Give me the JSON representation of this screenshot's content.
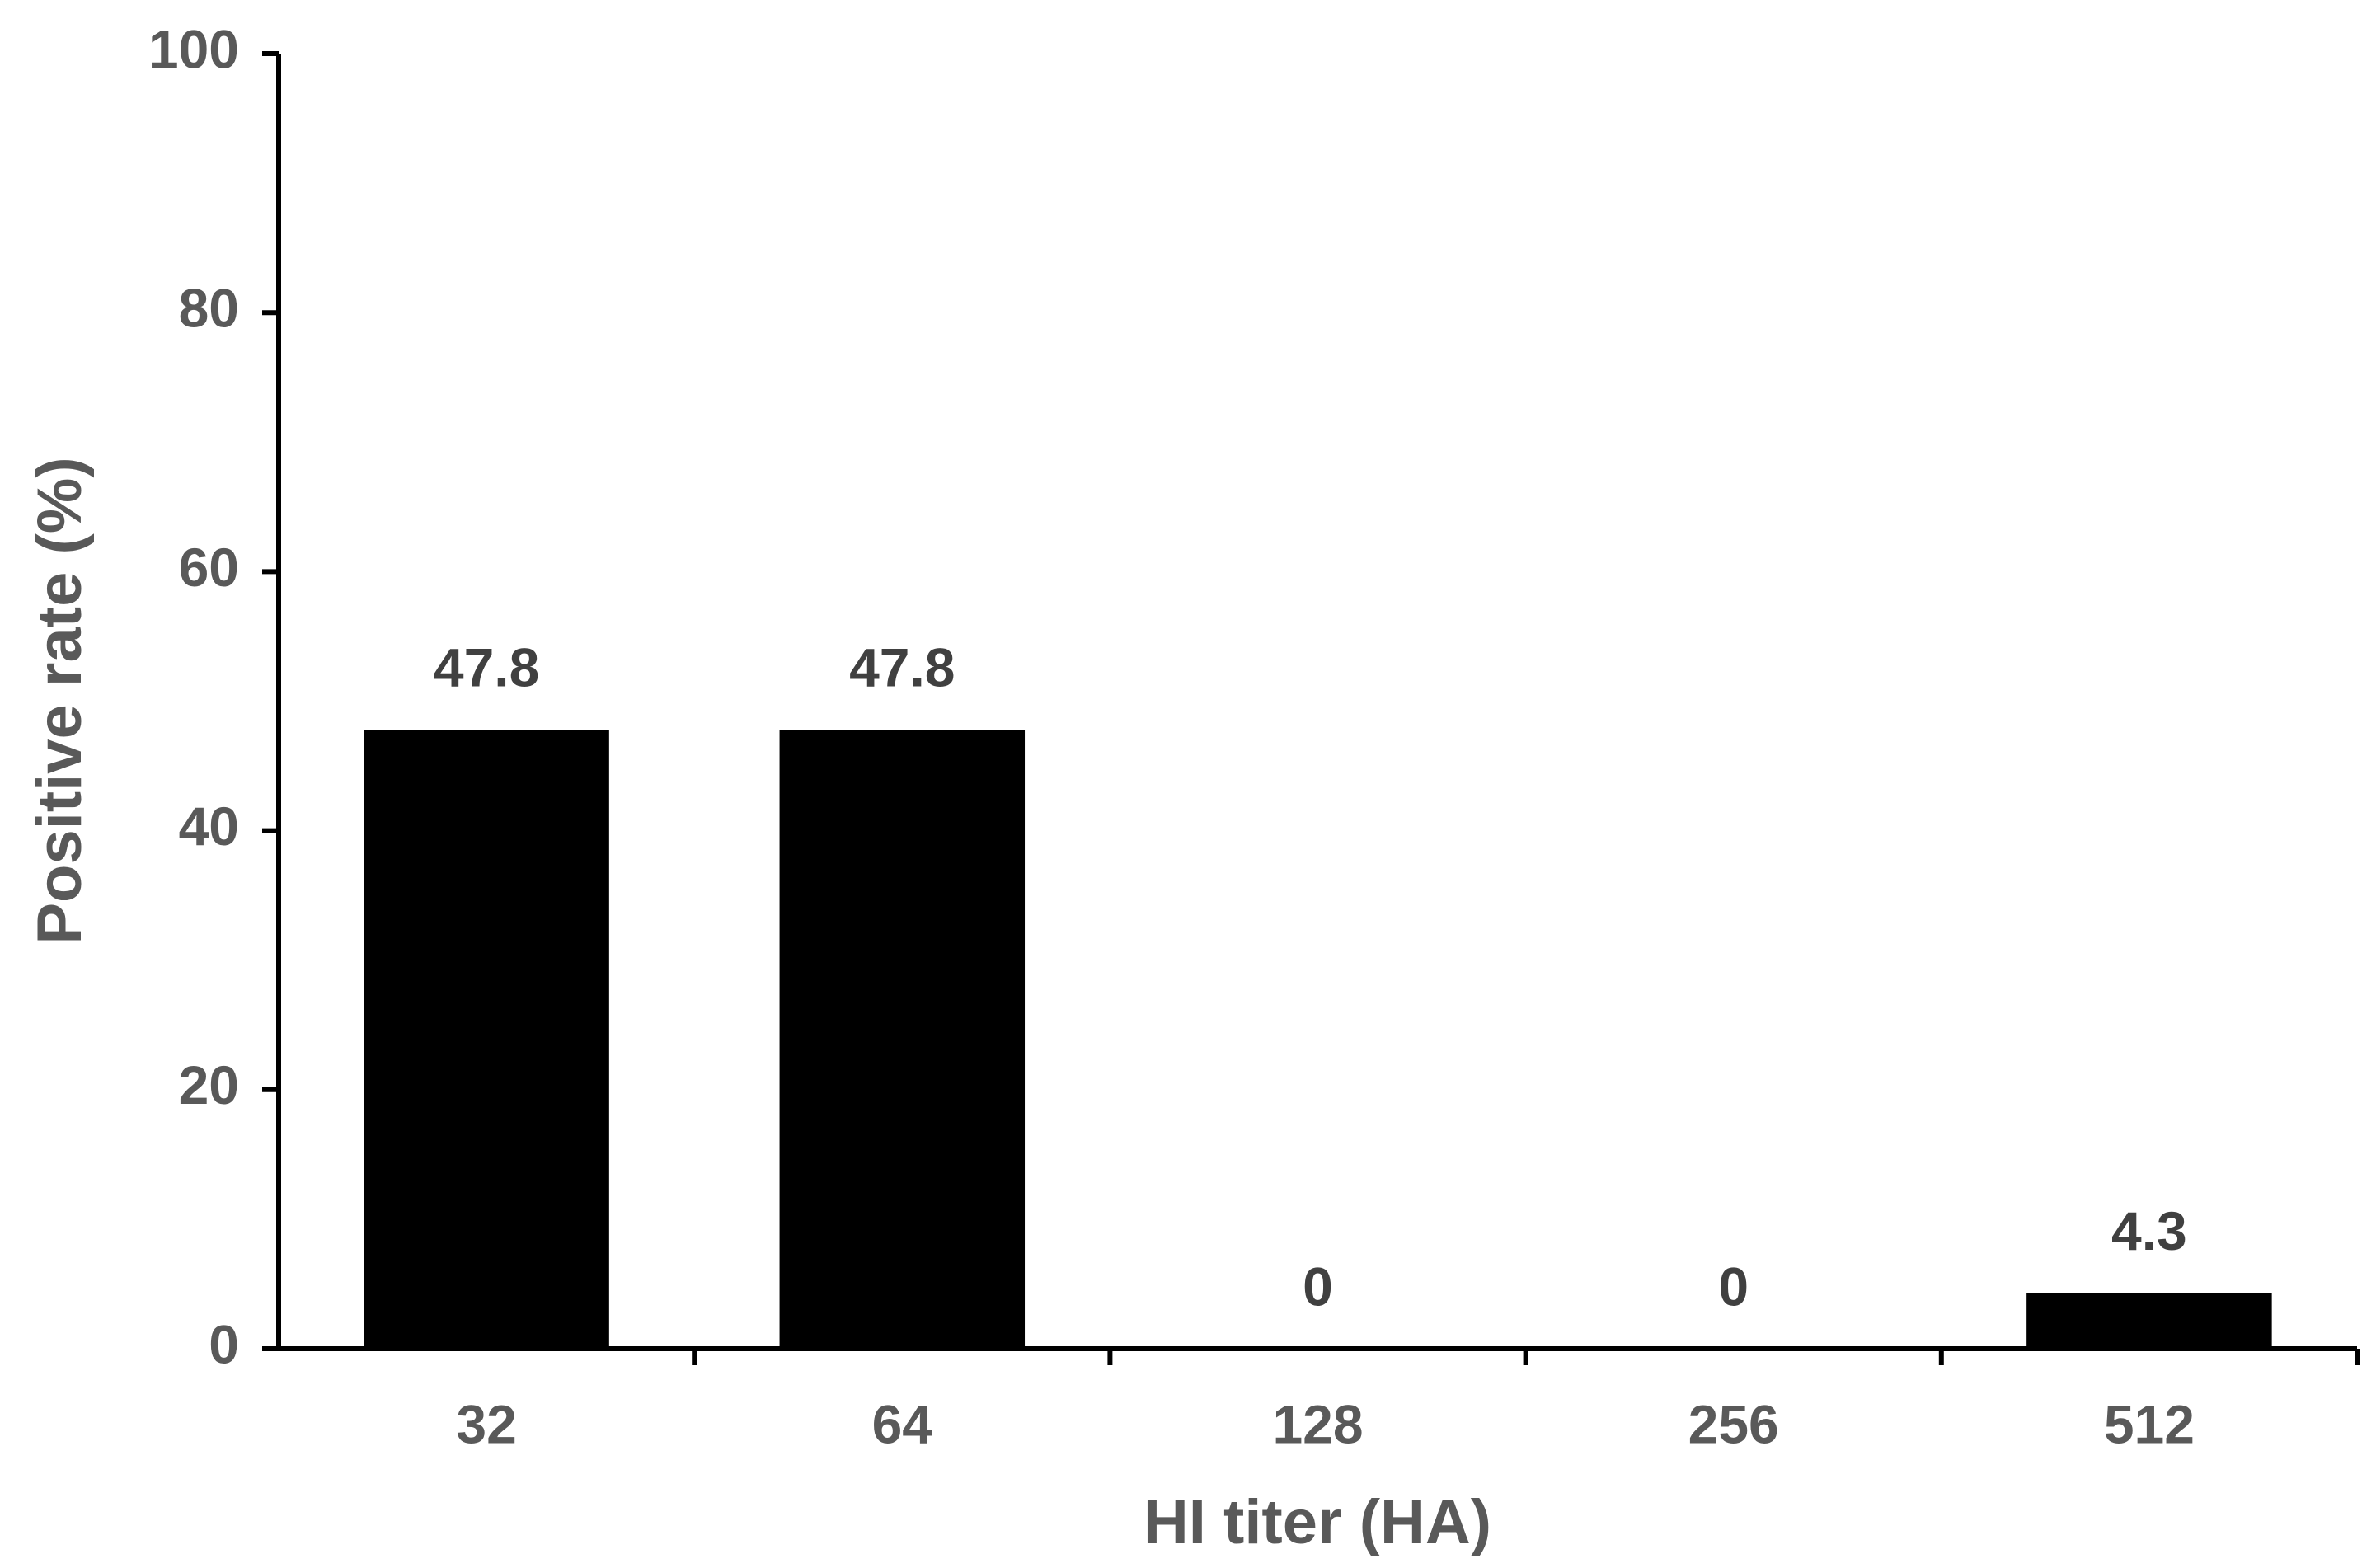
{
  "chart_data": {
    "type": "bar",
    "categories": [
      "32",
      "64",
      "128",
      "256",
      "512"
    ],
    "values": [
      47.8,
      47.8,
      0,
      0,
      4.3
    ],
    "color": "#000000",
    "xlabel": "HI titer (HA)",
    "ylabel": "Positive rate (%)",
    "ylim": [
      0,
      100
    ],
    "yticks": [
      0,
      20,
      40,
      60,
      80,
      100
    ],
    "grid": false
  }
}
